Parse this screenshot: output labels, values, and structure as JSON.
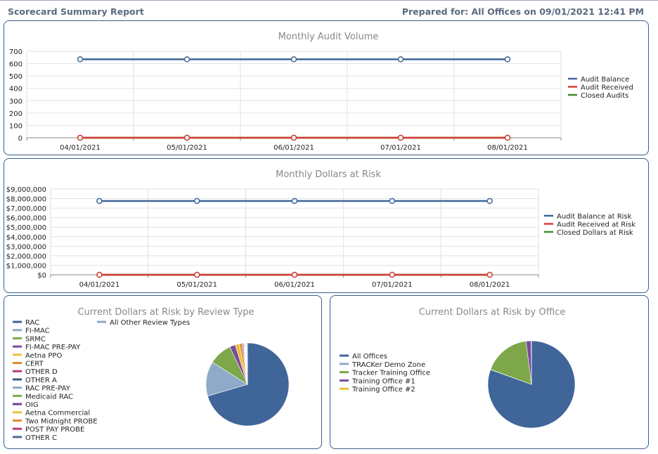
{
  "header": {
    "title": "Scorecard Summary Report",
    "prepared": "Prepared for: All Offices on 09/01/2021 12:41 PM"
  },
  "colors": {
    "blue": "#3f6599",
    "red": "#d53a32",
    "green": "#3f8a2e"
  },
  "chart_data": [
    {
      "type": "line",
      "title": "Monthly Audit Volume",
      "categories": [
        "04/01/2021",
        "05/01/2021",
        "06/01/2021",
        "07/01/2021",
        "08/01/2021"
      ],
      "ylim": [
        0,
        700
      ],
      "yticks": [
        "0",
        "100",
        "200",
        "300",
        "400",
        "500",
        "600",
        "700"
      ],
      "grid": true,
      "legend_position": "right",
      "series": [
        {
          "name": "Audit Balance",
          "color": "#3f6599",
          "values": [
            635,
            635,
            635,
            635,
            635
          ]
        },
        {
          "name": "Audit Received",
          "color": "#d53a32",
          "values": [
            0,
            0,
            0,
            0,
            0
          ]
        },
        {
          "name": "Closed Audits",
          "color": "#3f8a2e",
          "values": [
            0,
            0,
            0,
            0,
            0
          ]
        }
      ]
    },
    {
      "type": "line",
      "title": "Monthly Dollars at Risk",
      "categories": [
        "04/01/2021",
        "05/01/2021",
        "06/01/2021",
        "07/01/2021",
        "08/01/2021"
      ],
      "ylim": [
        0,
        9000000
      ],
      "yticks": [
        "$0",
        "$1,000,000",
        "$2,000,000",
        "$3,000,000",
        "$4,000,000",
        "$5,000,000",
        "$6,000,000",
        "$7,000,000",
        "$8,000,000",
        "$9,000,000"
      ],
      "grid": true,
      "legend_position": "right",
      "series": [
        {
          "name": "Audit Balance at Risk",
          "color": "#3f6599",
          "values": [
            7750000,
            7750000,
            7750000,
            7750000,
            7750000
          ]
        },
        {
          "name": "Audit Received at Risk",
          "color": "#d53a32",
          "values": [
            0,
            0,
            0,
            0,
            0
          ]
        },
        {
          "name": "Closed Dollars at Risk",
          "color": "#3f8a2e",
          "values": [
            0,
            0,
            0,
            0,
            0
          ]
        }
      ]
    },
    {
      "type": "pie",
      "title": "Current Dollars at Risk by Review Type",
      "legend_position": "left",
      "labels": [
        "RAC",
        "FI-MAC",
        "SRMC",
        "FI-MAC PRE-PAY",
        "Aetna PPO",
        "CERT",
        "OTHER D",
        "OTHER A",
        "RAC PRE-PAY",
        "Medicaid RAC",
        "OIG",
        "Aetna Commercial",
        "Two Midnight PROBE",
        "POST PAY PROBE",
        "OTHER C",
        "All Other Review Types"
      ],
      "colors": [
        "#3f6599",
        "#8fa9c8",
        "#7da74a",
        "#7c4a9b",
        "#e8c13b",
        "#e28a2f",
        "#b03a78",
        "#355a86",
        "#8fa9c8",
        "#7da74a",
        "#6b3f8d",
        "#e8c13b",
        "#e28a2f",
        "#b03a78",
        "#4a6d99",
        "#8fa9c8"
      ],
      "values": [
        70.5,
        13.5,
        9.0,
        2.2,
        1.6,
        1.0,
        0.4,
        0.3,
        0.3,
        0.2,
        0.2,
        0.2,
        0.1,
        0.1,
        0.1,
        0.3
      ]
    },
    {
      "type": "pie",
      "title": "Current Dollars at Risk by Office",
      "legend_position": "left",
      "labels": [
        "All Offices",
        "TRACKer Demo Zone",
        "Tracker Training Office",
        "Training Office #1",
        "Training Office #2"
      ],
      "colors": [
        "#3f6599",
        "#8fa9c8",
        "#7da74a",
        "#7c4a9b",
        "#e8c13b"
      ],
      "values": [
        80.5,
        0.1,
        17.4,
        1.9,
        0.1
      ]
    }
  ]
}
